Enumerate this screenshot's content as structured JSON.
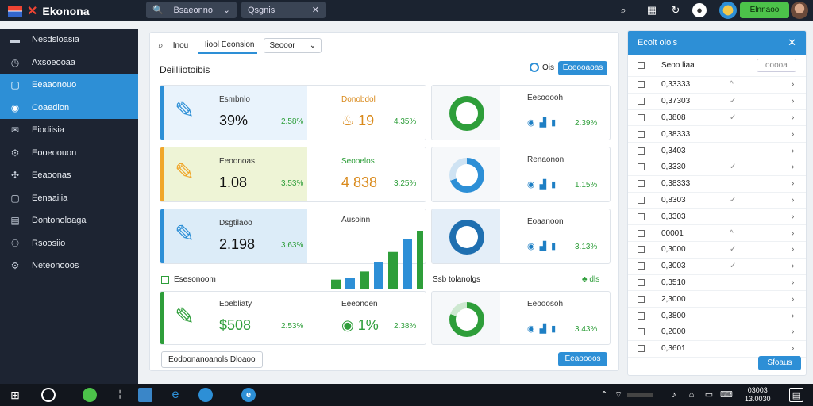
{
  "app": {
    "name": "Ekonona"
  },
  "topbar": {
    "select1": "Bsaeonno",
    "select2": "Qsgnis",
    "cta": "Elnnaoo"
  },
  "sidebar": {
    "items": [
      {
        "icon": "flag-icon",
        "label": "Nesdsloasia",
        "active": false
      },
      {
        "icon": "clock-icon",
        "label": "Axsoeooaa",
        "active": false
      },
      {
        "icon": "square-icon",
        "label": "Eeaaonouo",
        "active": true
      },
      {
        "icon": "globe-icon",
        "label": "Coaedlon",
        "active": true
      },
      {
        "icon": "mail-icon",
        "label": "Eiodiisia",
        "active": false
      },
      {
        "icon": "settings-icon",
        "label": "Eooeoouon",
        "active": false
      },
      {
        "icon": "puzzle-icon",
        "label": "Eeaoonas",
        "active": false
      },
      {
        "icon": "box-icon",
        "label": "Eenaaiiia",
        "active": false
      },
      {
        "icon": "doc-icon",
        "label": "Dontonoloaga",
        "active": false
      },
      {
        "icon": "people-icon",
        "label": "Rsoosiio",
        "active": false
      },
      {
        "icon": "gear-icon",
        "label": "Neteonooos",
        "active": false
      }
    ]
  },
  "main": {
    "tabs": [
      "Inou",
      "Hiool Eeonsion"
    ],
    "dropdown": "Seooor",
    "title": "Deiiliiotoibis",
    "header_icon_text": "Ois",
    "header_btn": "Eoeooaoas",
    "cards": [
      {
        "label": "Esmbnlo",
        "value": "39%",
        "pct": "2.58%",
        "label2": "Donobdol",
        "value2": "19",
        "pct2": "4.35%"
      },
      {
        "label": "Eeoonoas",
        "value": "1.08",
        "pct": "3.53%",
        "label2": "Seooelos",
        "value2": "4 838",
        "pct2": "3.25%"
      },
      {
        "label": "Dsgtilaoo",
        "value": "2.198",
        "pct": "3.63%",
        "label2": "Ausoinn"
      }
    ],
    "gauges": [
      {
        "label": "Eesooooh",
        "pct": "2.39%"
      },
      {
        "label": "Renaonon",
        "pct": "1.15%"
      },
      {
        "label": "Eoaanoon",
        "pct": "3.13%"
      },
      {
        "label": "Eeooosoh",
        "pct": "3.43%"
      }
    ],
    "section_left": "Esesonoom",
    "section_right": "Ssb tolanolgs",
    "section_right_badge": "dls",
    "bottom_card": {
      "label": "Eoebliaty",
      "value": "$508",
      "pct": "2.53%",
      "label2": "Eeeonoen",
      "value2": "1%",
      "pct2": "2.38%"
    },
    "footer_btn": "Eodoonanoanols Dloaoo",
    "footer_cta": "Eeaoooos",
    "bars": [
      12,
      14,
      22,
      34,
      46,
      62,
      72
    ]
  },
  "panel": {
    "title": "Ecoit oiois",
    "header_col": "Seoo liaa",
    "header_btn": "ooooa",
    "rows": [
      "0,33333",
      "0,37303",
      "0,3808",
      "0,38333",
      "0,3403",
      "0,3330",
      "0,38333",
      "0,8303",
      "0,3303",
      "00001",
      "0,3000",
      "0,3003",
      "0,3510",
      "2,3000",
      "0,3800",
      "0,2000",
      "0,3601"
    ],
    "footer_btn": "Sfoaus"
  },
  "taskbar": {
    "time": "03003",
    "date": "13.0030"
  }
}
